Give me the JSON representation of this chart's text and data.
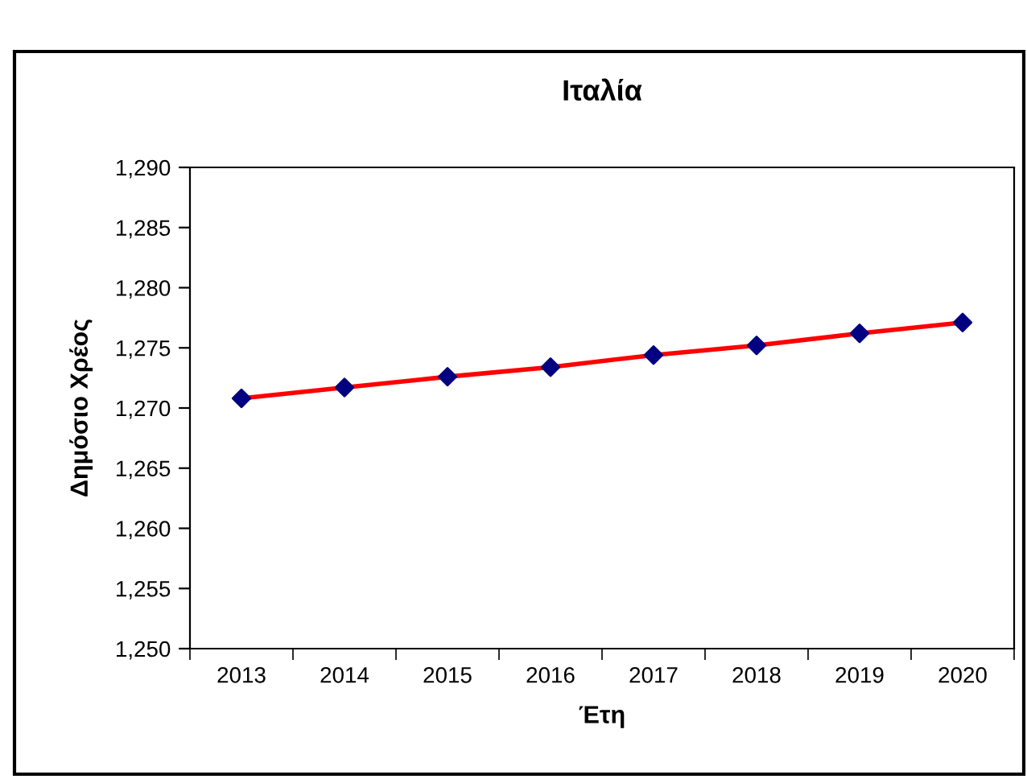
{
  "chart_data": {
    "type": "line",
    "title": "Ιταλία",
    "xlabel": "Έτη",
    "ylabel": "Δημόσιο Χρέος",
    "categories": [
      "2013",
      "2014",
      "2015",
      "2016",
      "2017",
      "2018",
      "2019",
      "2020"
    ],
    "series": [
      {
        "color": "#ff0000",
        "colors": [
          "#000080",
          "#000080",
          "#000080",
          "#000080",
          "#000080",
          "#000080",
          "#000080",
          "#000080"
        ],
        "values": [
          1270.8,
          1271.7,
          1272.6,
          1273.4,
          1274.4,
          1275.2,
          1276.2,
          1277.1
        ]
      }
    ],
    "ylim": [
      1250,
      1290
    ],
    "yticks": [
      {
        "value": 1250,
        "label": "1,250"
      },
      {
        "value": 1255,
        "label": "1,255"
      },
      {
        "value": 1260,
        "label": "1,260"
      },
      {
        "value": 1265,
        "label": "1,265"
      },
      {
        "value": 1270,
        "label": "1,270"
      },
      {
        "value": 1275,
        "label": "1,275"
      },
      {
        "value": 1280,
        "label": "1,280"
      },
      {
        "value": 1285,
        "label": "1,285"
      },
      {
        "value": 1290,
        "label": "1,290"
      }
    ],
    "marker": "diamond",
    "line_style": "solid",
    "grid": false,
    "legend": false
  }
}
